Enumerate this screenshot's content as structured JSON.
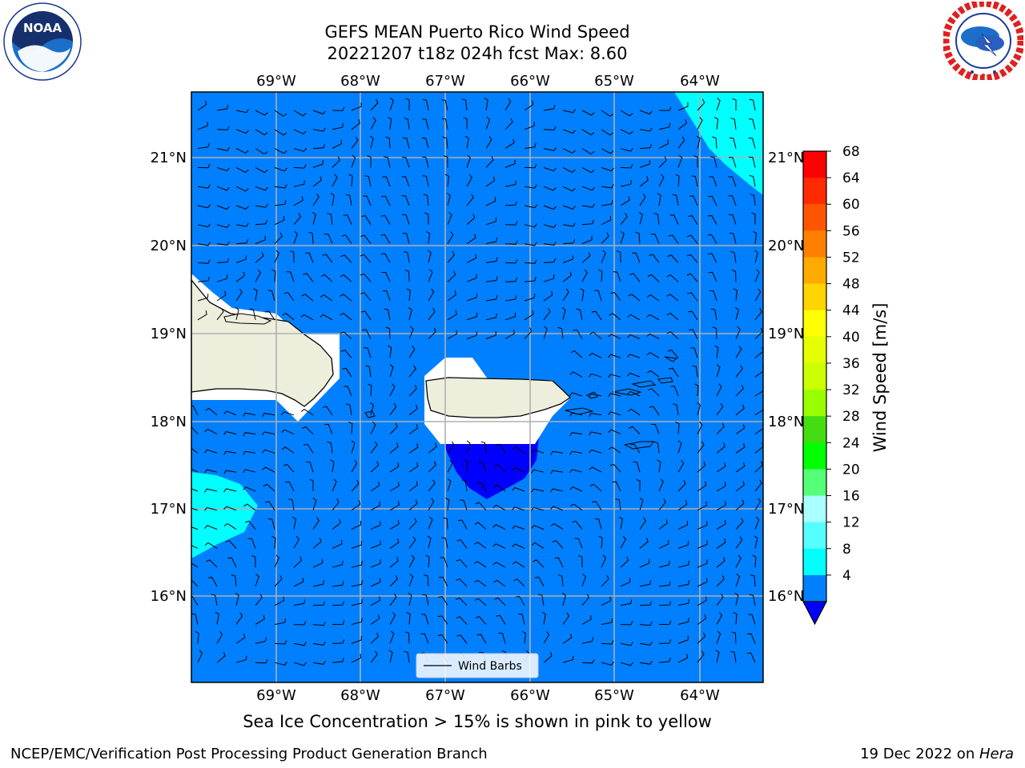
{
  "header": {
    "title_line1": "GEFS MEAN Puerto Rico Wind Speed",
    "title_line2": "20221207 t18z 024h fcst   Max: 8.60"
  },
  "logos": {
    "left": {
      "icon": "noaa-logo-icon",
      "text": "NOAA"
    },
    "right": {
      "icon": "nws-logo-icon"
    }
  },
  "map": {
    "lon_labels": [
      "69°W",
      "68°W",
      "67°W",
      "66°W",
      "65°W",
      "64°W"
    ],
    "lat_labels": [
      "21°N",
      "20°N",
      "19°N",
      "18°N",
      "17°N",
      "16°N"
    ],
    "legend_label": "Wind Barbs",
    "colors": {
      "ocean": "#0080ff",
      "cyan": "#00ffff",
      "deep_blue": "#0000ff",
      "land": "#eeeedd",
      "grid": "#b0b0b0"
    }
  },
  "colorbar": {
    "label": "Wind Speed [m/s]",
    "ticks": [
      "68",
      "64",
      "60",
      "56",
      "52",
      "48",
      "44",
      "40",
      "36",
      "32",
      "28",
      "24",
      "20",
      "16",
      "12",
      "8",
      "4"
    ],
    "colors": [
      "#ff0000",
      "#ff2a00",
      "#ff5500",
      "#ff8000",
      "#ffaa00",
      "#ffd400",
      "#ffff00",
      "#e6ff00",
      "#ccff00",
      "#99ff00",
      "#44dd11",
      "#00ff00",
      "#55ff77",
      "#aaffff",
      "#55ffff",
      "#00ffff",
      "#0080ff"
    ],
    "underflow_color": "#0000ff"
  },
  "caption": "Sea Ice Concentration > 15% is shown in pink to yellow",
  "footer": {
    "left": "NCEP/EMC/Verification Post Processing Product Generation Branch",
    "right_date": "19 Dec 2022 on ",
    "right_host": "Hera"
  }
}
